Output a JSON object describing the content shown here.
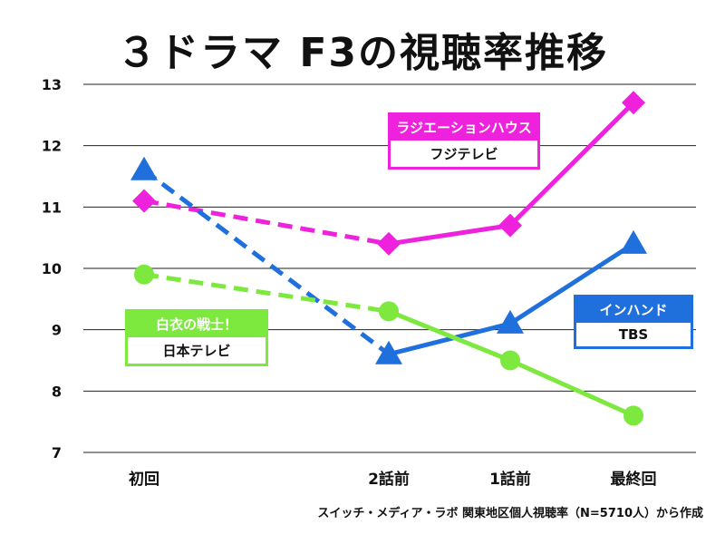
{
  "title": "３ドラマ F3の視聴率推移",
  "source_note": "スイッチ・メディア・ラボ 関東地区個人視聴率（N=5710人）から作成",
  "chart_data": {
    "type": "line",
    "title": "３ドラマ F3の視聴率推移",
    "xlabel": "",
    "ylabel": "",
    "categories": [
      "初回",
      "2話前",
      "1話前",
      "最終回"
    ],
    "ylim": [
      7,
      13
    ],
    "yticks": [
      7,
      8,
      9,
      10,
      11,
      12,
      13
    ],
    "grid": true,
    "series": [
      {
        "name": "ラジエーションハウス",
        "network": "フジテレビ",
        "color": "#ee22dd",
        "marker": "diamond",
        "dashed_first_segment": true,
        "values": [
          11.1,
          10.4,
          10.7,
          12.7
        ]
      },
      {
        "name": "インハンド",
        "network": "TBS",
        "color": "#1f6fdc",
        "marker": "triangle",
        "dashed_first_segment": true,
        "values": [
          11.6,
          8.6,
          9.1,
          10.4
        ]
      },
      {
        "name": "白衣の戦士！",
        "network": "日本テレビ",
        "color": "#7de83e",
        "marker": "circle",
        "dashed_first_segment": true,
        "values": [
          9.9,
          9.3,
          8.5,
          7.6
        ]
      }
    ]
  }
}
